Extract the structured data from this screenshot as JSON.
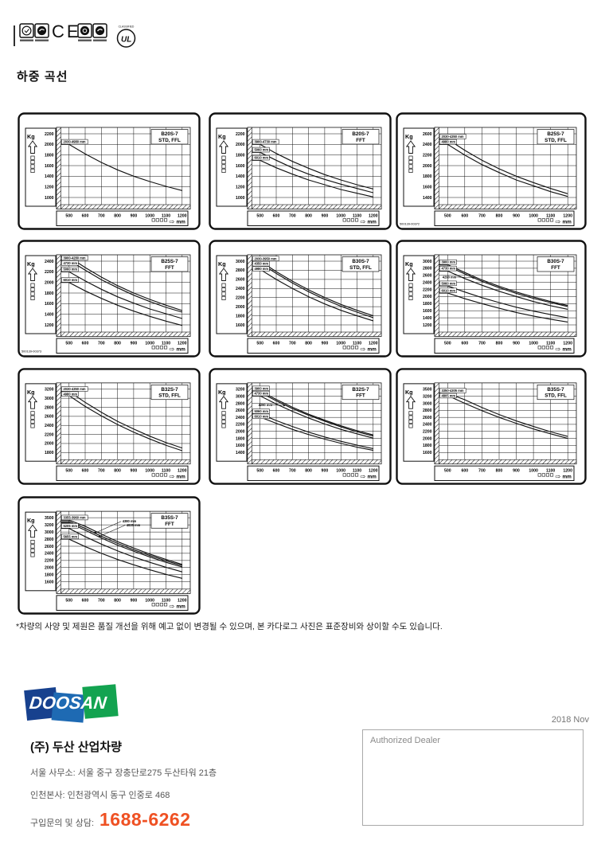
{
  "page": {
    "heading": "하중 곡선",
    "footnote": "*차량의 사양 및 제원은 품질 개선을 위해 예고 없이 변경될 수 있으며, 본 카다로그 사진은 표준장비와 상이할 수도 있습니다."
  },
  "certifications": {
    "ce": "CE",
    "ul": "UL",
    "ul_caption": "CLASSIFIED"
  },
  "footer": {
    "logo_text": "DOOSAN",
    "company": "(주) 두산 산업차량",
    "address_seoul": "서울 사무소: 서울 중구 장충단로275 두산타워 21층",
    "address_incheon": "인천본사: 인천광역시 동구 인중로 468",
    "contact_label": "구입문의 및 상담:",
    "phone": "1688-6262",
    "date": "2018 Nov",
    "dealer_label": "Authorized Dealer",
    "colors": {
      "phone_accent": "#ef5123",
      "navy": "#17418e",
      "blue": "#1e6ab3",
      "green": "#13a350"
    }
  },
  "chart_data": [
    {
      "type": "line",
      "model": "B20S-7",
      "variant": "STD, FFL",
      "doc_no": "",
      "ylabel": "Kg",
      "x_unit": "mm",
      "x_ticks": [
        500,
        600,
        700,
        800,
        900,
        1000,
        1100,
        1200
      ],
      "y_ticks": [
        2200,
        2000,
        1800,
        1600,
        1400,
        1200,
        1000
      ],
      "series": [
        {
          "name": "2030-4980 mm",
          "values": [
            2000,
            1820,
            1660,
            1520,
            1400,
            1300,
            1210,
            1130
          ]
        }
      ]
    },
    {
      "type": "line",
      "model": "B20S-7",
      "variant": "FFT",
      "doc_no": "",
      "ylabel": "Kg",
      "x_unit": "mm",
      "x_ticks": [
        500,
        600,
        700,
        800,
        900,
        1000,
        1100,
        1200
      ],
      "y_ticks": [
        2200,
        2000,
        1800,
        1600,
        1400,
        1200,
        1000
      ],
      "series": [
        {
          "name": "3900-4730 mm",
          "values": [
            2000,
            1830,
            1680,
            1550,
            1430,
            1330,
            1240,
            1160
          ]
        },
        {
          "name": "5060 mm",
          "values": [
            1850,
            1700,
            1560,
            1440,
            1340,
            1250,
            1170,
            1090
          ]
        },
        {
          "name": "6010 mm",
          "values": [
            1700,
            1560,
            1440,
            1330,
            1240,
            1150,
            1080,
            1010
          ]
        }
      ]
    },
    {
      "type": "line",
      "model": "B25S-7",
      "variant": "STD, FFL",
      "doc_no": "500139-00372",
      "ylabel": "Kg",
      "x_unit": "mm",
      "x_ticks": [
        500,
        600,
        700,
        800,
        900,
        1000,
        1100,
        1200
      ],
      "y_ticks": [
        2600,
        2400,
        2200,
        2000,
        1800,
        1600,
        1400
      ],
      "series": [
        {
          "name": "2030-4350 mm",
          "values": [
            2500,
            2290,
            2100,
            1940,
            1800,
            1680,
            1570,
            1470
          ]
        },
        {
          "name": "4980 mm",
          "values": [
            2400,
            2200,
            2020,
            1870,
            1730,
            1620,
            1510,
            1420
          ]
        }
      ]
    },
    {
      "type": "line",
      "model": "B25S-7",
      "variant": "FFT",
      "doc_no": "500139-00373",
      "ylabel": "Kg",
      "x_unit": "mm",
      "x_ticks": [
        500,
        600,
        700,
        800,
        900,
        1000,
        1100,
        1200
      ],
      "y_ticks": [
        2400,
        2200,
        2000,
        1800,
        1600,
        1400,
        1200
      ],
      "series": [
        {
          "name": "3900-4280 mm",
          "values": [
            2480,
            2280,
            2100,
            1940,
            1800,
            1680,
            1570,
            1470
          ]
        },
        {
          "name": "4730 mm",
          "values": [
            2420,
            2230,
            2050,
            1900,
            1760,
            1640,
            1530,
            1440
          ]
        },
        {
          "name": "5060 mm",
          "values": [
            2200,
            2030,
            1870,
            1730,
            1610,
            1500,
            1410,
            1320
          ]
        },
        {
          "name": "6010 mm",
          "values": [
            2000,
            1840,
            1700,
            1570,
            1460,
            1360,
            1270,
            1190
          ]
        }
      ]
    },
    {
      "type": "line",
      "model": "B30S-7",
      "variant": "STD, FFL",
      "doc_no": "",
      "ylabel": "Kg",
      "x_unit": "mm",
      "x_ticks": [
        500,
        600,
        700,
        800,
        900,
        1000,
        1100,
        1200
      ],
      "y_ticks": [
        3000,
        2800,
        2600,
        2400,
        2200,
        2000,
        1800,
        1600
      ],
      "series": [
        {
          "name": "2030-3950 mm",
          "values": [
            3000,
            2770,
            2560,
            2370,
            2200,
            2050,
            1920,
            1800
          ]
        },
        {
          "name": "4350 mm",
          "values": [
            2960,
            2730,
            2520,
            2330,
            2160,
            2010,
            1880,
            1760
          ]
        },
        {
          "name": "4980 mm",
          "values": [
            2820,
            2600,
            2400,
            2220,
            2060,
            1920,
            1800,
            1690
          ]
        }
      ]
    },
    {
      "type": "line",
      "model": "B30S-7",
      "variant": "FFT",
      "doc_no": "",
      "ylabel": "Kg",
      "x_unit": "mm",
      "x_ticks": [
        500,
        600,
        700,
        800,
        900,
        1000,
        1100,
        1200
      ],
      "y_ticks": [
        3000,
        2800,
        2600,
        2400,
        2200,
        2000,
        1800,
        1600,
        1400,
        1200
      ],
      "series": [
        {
          "name": "3900 mm",
          "values": [
            2900,
            2680,
            2470,
            2290,
            2130,
            1990,
            1860,
            1750
          ]
        },
        {
          "name": "4730 mm",
          "values": [
            2720,
            2510,
            2320,
            2150,
            2000,
            1860,
            1740,
            1640
          ]
        },
        {
          "name": "4290 mm",
          "values": [
            2860,
            2640,
            2430,
            2250,
            2090,
            1950,
            1830,
            1720
          ],
          "callout": {
            "text": [
              470,
              2520
            ],
            "tip": [
              660,
              2530
            ]
          }
        },
        {
          "name": "5060 mm",
          "values": [
            2300,
            2130,
            1970,
            1830,
            1700,
            1590,
            1490,
            1400
          ]
        },
        {
          "name": "6010 mm",
          "values": [
            2100,
            1940,
            1800,
            1670,
            1550,
            1450,
            1360,
            1280
          ]
        }
      ]
    },
    {
      "type": "line",
      "model": "B32S-7",
      "variant": "STD, FFL",
      "doc_no": "",
      "ylabel": "Kg",
      "x_unit": "mm",
      "x_ticks": [
        500,
        600,
        700,
        800,
        900,
        1000,
        1100,
        1200
      ],
      "y_ticks": [
        3200,
        3000,
        2800,
        2600,
        2400,
        2200,
        2000,
        1800
      ],
      "series": [
        {
          "name": "2030-4350 mm",
          "values": [
            3150,
            2910,
            2690,
            2490,
            2320,
            2160,
            2020,
            1900
          ]
        },
        {
          "name": "4980 mm",
          "values": [
            3060,
            2820,
            2610,
            2420,
            2250,
            2100,
            1960,
            1840
          ]
        }
      ]
    },
    {
      "type": "line",
      "model": "B32S-7",
      "variant": "FFT",
      "doc_no": "",
      "ylabel": "Kg",
      "x_unit": "mm",
      "x_ticks": [
        500,
        600,
        700,
        800,
        900,
        1000,
        1100,
        1200
      ],
      "y_ticks": [
        3200,
        3000,
        2800,
        2600,
        2400,
        2200,
        2000,
        1800,
        1600,
        1400
      ],
      "series": [
        {
          "name": "3900 mm",
          "values": [
            3150,
            2910,
            2690,
            2490,
            2320,
            2160,
            2020,
            1900
          ]
        },
        {
          "name": "4730 mm",
          "values": [
            3010,
            2780,
            2570,
            2380,
            2210,
            2060,
            1930,
            1810
          ]
        },
        {
          "name": "4290 mm",
          "values": [
            3110,
            2870,
            2650,
            2460,
            2290,
            2130,
            1990,
            1870
          ],
          "callout": {
            "text": [
              490,
              2720
            ],
            "tip": [
              660,
              2740
            ]
          }
        },
        {
          "name": "5060 mm",
          "values": [
            2500,
            2310,
            2140,
            1980,
            1840,
            1720,
            1610,
            1510
          ]
        },
        {
          "name": "6010 mm",
          "values": [
            2410,
            2230,
            2060,
            1910,
            1780,
            1660,
            1550,
            1460
          ]
        }
      ]
    },
    {
      "type": "line",
      "model": "B35S-7",
      "variant": "STD, FFL",
      "doc_no": "",
      "ylabel": "Kg",
      "x_unit": "mm",
      "x_ticks": [
        500,
        600,
        700,
        800,
        900,
        1000,
        1100,
        1200
      ],
      "y_ticks": [
        3500,
        3200,
        3000,
        2800,
        2600,
        2400,
        2200,
        2000,
        1800,
        1600
      ],
      "series": [
        {
          "name": "3350-4305 mm",
          "values": [
            3330,
            3100,
            2880,
            2680,
            2500,
            2340,
            2190,
            2060
          ]
        },
        {
          "name": "4805 mm",
          "values": [
            3230,
            3000,
            2790,
            2600,
            2430,
            2270,
            2130,
            2000
          ]
        }
      ]
    },
    {
      "type": "line",
      "model": "B35S-7",
      "variant": "FFT",
      "doc_no": "",
      "ylabel": "Kg",
      "x_unit": "mm",
      "x_ticks": [
        500,
        600,
        700,
        800,
        900,
        1000,
        1100,
        1200
      ],
      "y_ticks": [
        3500,
        3200,
        3000,
        2800,
        2600,
        2400,
        2200,
        2000,
        1800,
        1600
      ],
      "series": [
        {
          "name": "3355-3960 mm",
          "values": [
            3400,
            3160,
            2940,
            2730,
            2550,
            2380,
            2230,
            2090
          ]
        },
        {
          "name": "4380 mm",
          "values": [
            3340,
            3100,
            2880,
            2680,
            2500,
            2340,
            2190,
            2060
          ],
          "callout": {
            "text": [
              830,
              3300
            ],
            "tip": [
              655,
              2960
            ]
          }
        },
        {
          "name": "4835 mm",
          "values": [
            3290,
            3050,
            2830,
            2630,
            2460,
            2300,
            2150,
            2020
          ],
          "callout": {
            "text": [
              855,
              3160
            ],
            "tip": [
              680,
              2860
            ]
          }
        },
        {
          "name": "5205 mm",
          "values": [
            3100,
            2870,
            2660,
            2470,
            2300,
            2150,
            2010,
            1880
          ]
        },
        {
          "name": "5655 mm",
          "values": [
            2800,
            2590,
            2400,
            2230,
            2080,
            1940,
            1810,
            1700
          ]
        }
      ]
    }
  ]
}
